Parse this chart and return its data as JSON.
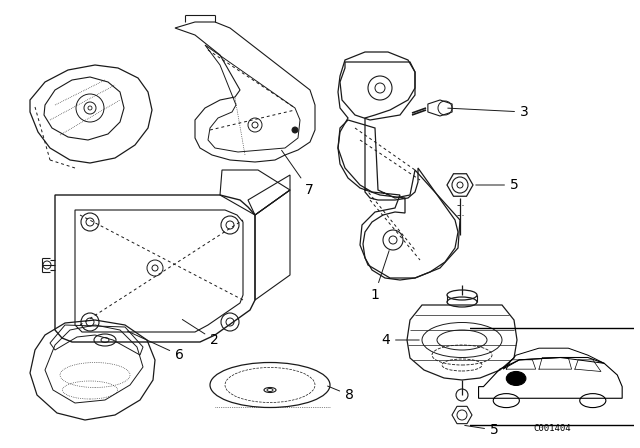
{
  "background_color": "#ffffff",
  "line_color": "#1a1a1a",
  "code_text": "C001404",
  "fig_width": 6.4,
  "fig_height": 4.48,
  "dpi": 100
}
